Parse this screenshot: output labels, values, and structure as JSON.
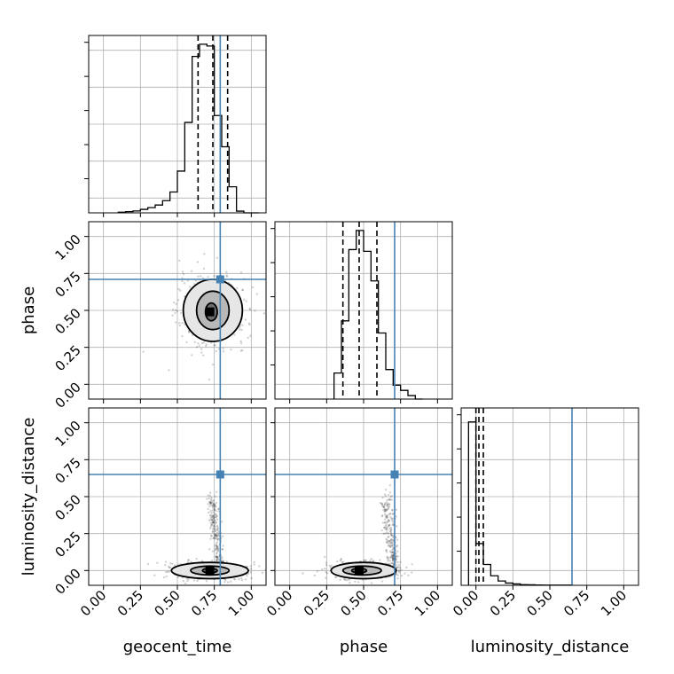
{
  "chart_data": {
    "type": "corner",
    "parameters": [
      "geocent_time",
      "phase",
      "luminosity_distance"
    ],
    "truths": [
      0.79,
      0.71,
      0.65
    ],
    "truth_color": "#4682b4",
    "axis_range": [
      -0.1,
      1.1
    ],
    "tick_labels": [
      "0.00",
      "0.25",
      "0.50",
      "0.75",
      "1.00"
    ],
    "tick_values": [
      0,
      0.25,
      0.5,
      0.75,
      1.0
    ],
    "grid": true,
    "histograms": [
      {
        "parameter": "geocent_time",
        "bin_edges": [
          0.1,
          0.15,
          0.2,
          0.25,
          0.3,
          0.35,
          0.4,
          0.45,
          0.5,
          0.55,
          0.6,
          0.65,
          0.7,
          0.75,
          0.8,
          0.85,
          0.9,
          0.95,
          1.0,
          1.05
        ],
        "heights": [
          0.004,
          0.007,
          0.011,
          0.02,
          0.03,
          0.045,
          0.07,
          0.12,
          0.24,
          0.52,
          0.9,
          0.97,
          0.96,
          0.56,
          0.38,
          0.15,
          0.01,
          0,
          0
        ],
        "quantiles": [
          0.64,
          0.74,
          0.84
        ]
      },
      {
        "parameter": "phase",
        "bin_edges": [
          0.3,
          0.35,
          0.4,
          0.45,
          0.5,
          0.55,
          0.6,
          0.65,
          0.7,
          0.75,
          0.8,
          0.85,
          0.9
        ],
        "heights": [
          0.15,
          0.45,
          0.86,
          0.97,
          0.85,
          0.68,
          0.38,
          0.17,
          0.08,
          0.05,
          0.02,
          0
        ],
        "quantiles": [
          0.36,
          0.47,
          0.59
        ]
      },
      {
        "parameter": "luminosity_distance",
        "bin_edges": [
          -0.05,
          0.0,
          0.05,
          0.1,
          0.15,
          0.2,
          0.25,
          0.3,
          0.35,
          0.4,
          0.45,
          0.5,
          0.55,
          0.6,
          0.65
        ],
        "heights": [
          0.94,
          0.24,
          0.12,
          0.055,
          0.025,
          0.013,
          0.008,
          0.004,
          0.003,
          0.002,
          0.001,
          0.001,
          0.001,
          0.001
        ],
        "quantiles": [
          0.0,
          0.02,
          0.05
        ]
      }
    ],
    "scatter_2d": [
      {
        "x": "geocent_time",
        "y": "phase",
        "peak": [
          0.72,
          0.49
        ],
        "contour_levels": [
          {
            "center": [
              0.74,
              0.5
            ],
            "rx": 0.2,
            "ry": 0.21
          },
          {
            "center": [
              0.74,
              0.5
            ],
            "rx": 0.11,
            "ry": 0.13
          },
          {
            "center": [
              0.73,
              0.49
            ],
            "rx": 0.04,
            "ry": 0.06
          }
        ]
      },
      {
        "x": "geocent_time",
        "y": "luminosity_distance",
        "peak": [
          0.72,
          0.0
        ],
        "contour_levels": [
          {
            "center": [
              0.72,
              0.0
            ],
            "rx": 0.26,
            "ry": 0.055
          },
          {
            "center": [
              0.72,
              0.0
            ],
            "rx": 0.13,
            "ry": 0.03
          },
          {
            "center": [
              0.72,
              0.0
            ],
            "rx": 0.05,
            "ry": 0.015
          }
        ]
      },
      {
        "x": "phase",
        "y": "luminosity_distance",
        "peak": [
          0.47,
          0.0
        ],
        "contour_levels": [
          {
            "center": [
              0.5,
              0.0
            ],
            "rx": 0.22,
            "ry": 0.055
          },
          {
            "center": [
              0.49,
              0.0
            ],
            "rx": 0.13,
            "ry": 0.03
          },
          {
            "center": [
              0.47,
              0.0
            ],
            "rx": 0.05,
            "ry": 0.015
          }
        ]
      }
    ]
  }
}
